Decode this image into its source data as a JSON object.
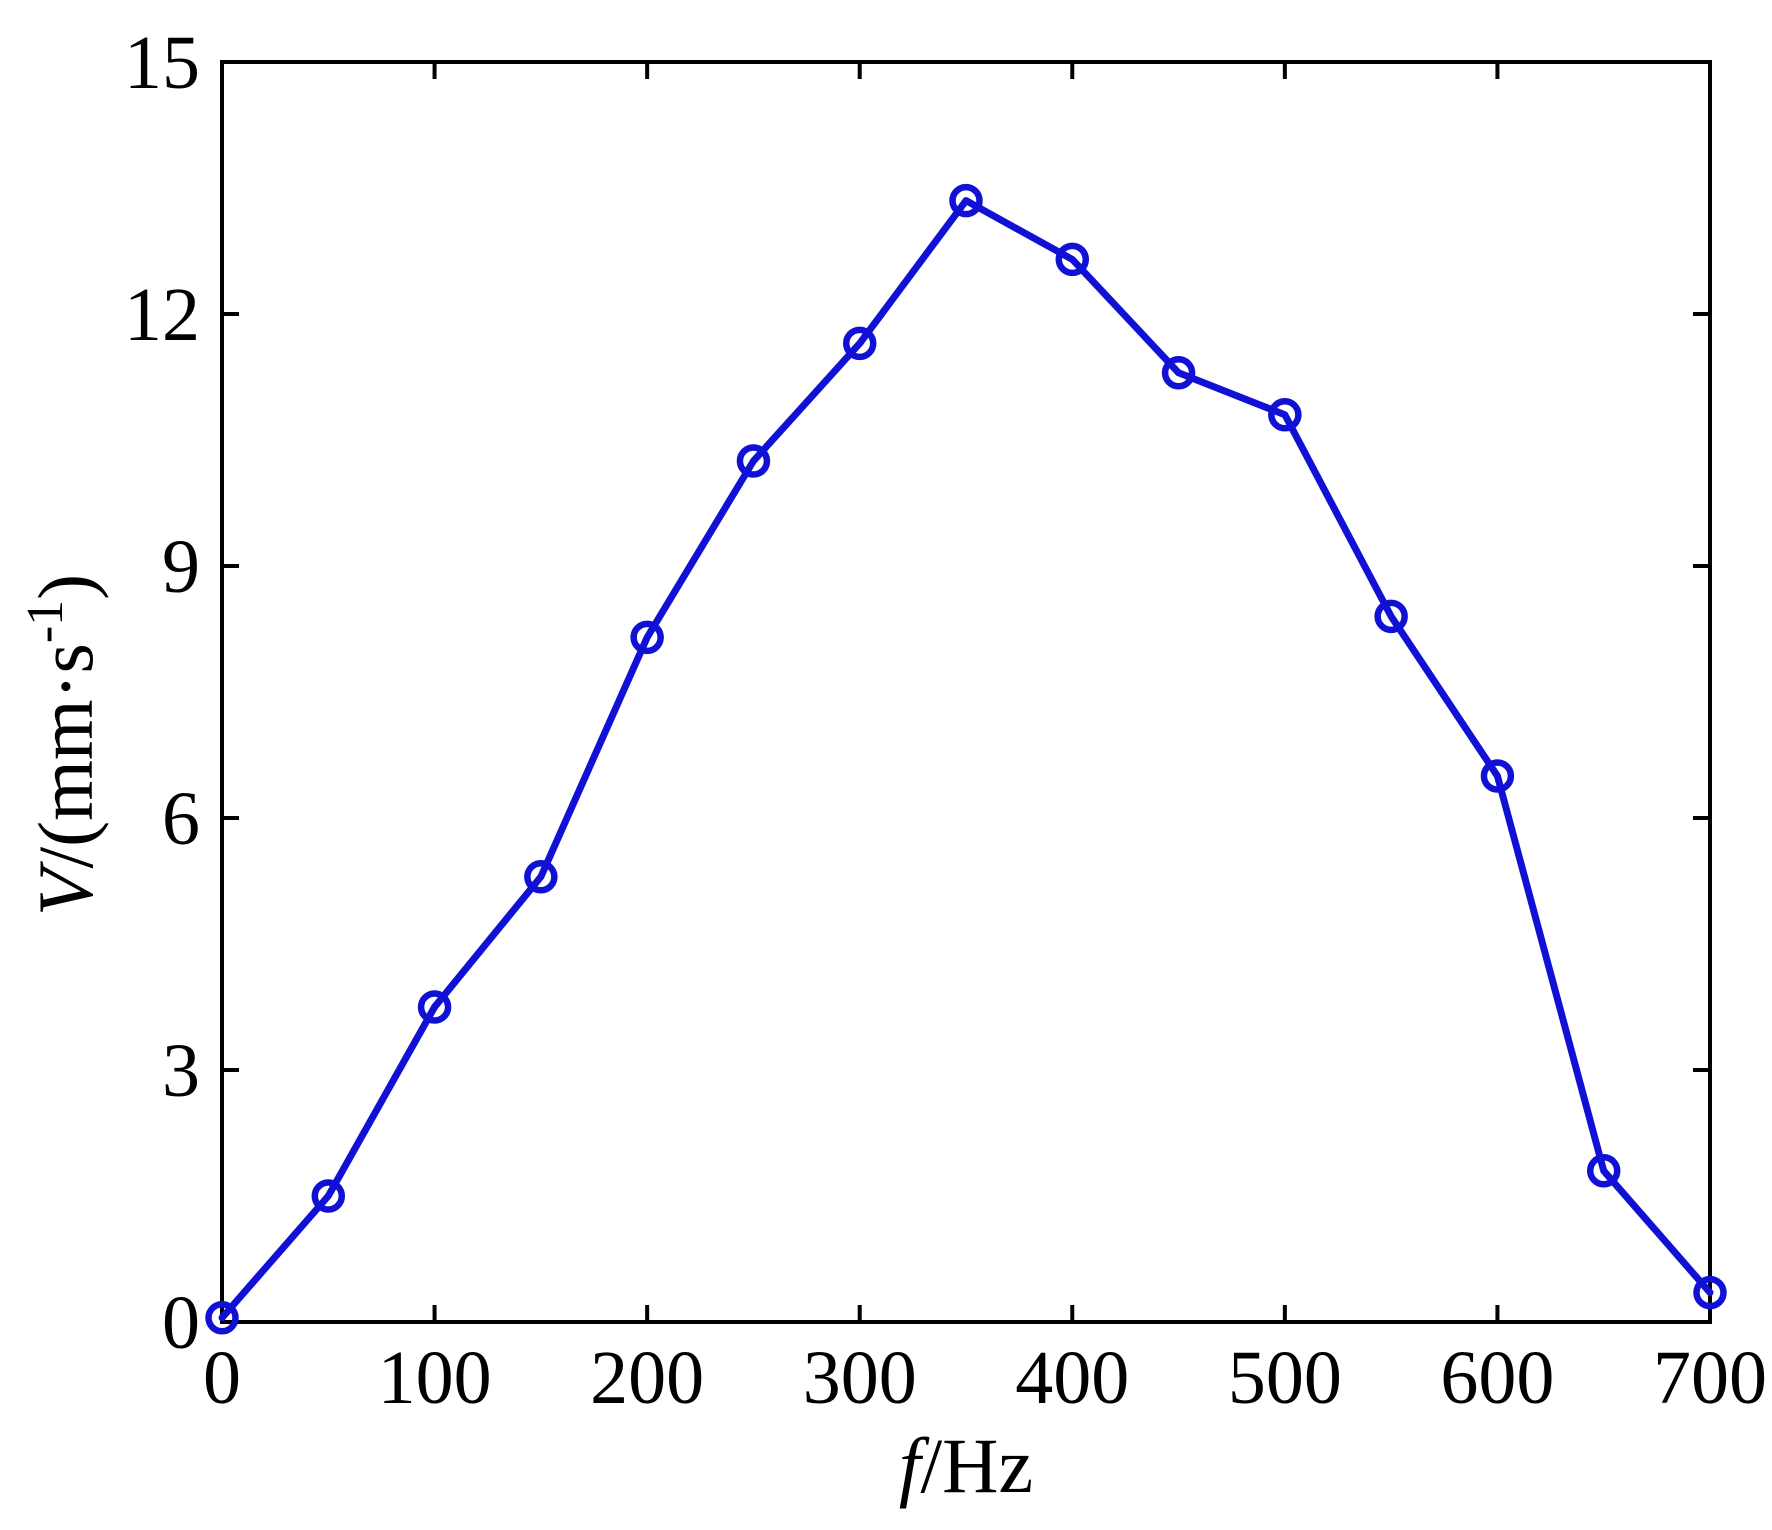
{
  "figure": {
    "background": "#ffffff"
  },
  "chart_data": {
    "type": "line",
    "title": "",
    "xlabel": "f/Hz",
    "ylabel": "V/(mm·s⁻¹)",
    "xlabel_parts": {
      "italic": "f",
      "rest": "/Hz"
    },
    "ylabel_parts": {
      "italic": "V",
      "mid": "/(mm·s",
      "sup": "-1",
      "end": ")"
    },
    "x": [
      0,
      50,
      100,
      150,
      200,
      250,
      300,
      350,
      400,
      450,
      500,
      550,
      600,
      650,
      700
    ],
    "series": [
      {
        "name": "V",
        "values": [
          0.05,
          1.5,
          3.75,
          5.3,
          8.15,
          10.25,
          11.65,
          13.35,
          12.65,
          11.3,
          10.8,
          8.4,
          6.5,
          1.8,
          0.35
        ]
      }
    ],
    "xlim": [
      0,
      700
    ],
    "ylim": [
      0,
      15
    ],
    "xticks": [
      0,
      100,
      200,
      300,
      400,
      500,
      600,
      700
    ],
    "yticks": [
      0,
      3,
      6,
      9,
      12,
      15
    ],
    "grid": false,
    "legend": "none",
    "line_color": "#1111d6",
    "axis_color": "#000000",
    "marker": "open-circle"
  }
}
